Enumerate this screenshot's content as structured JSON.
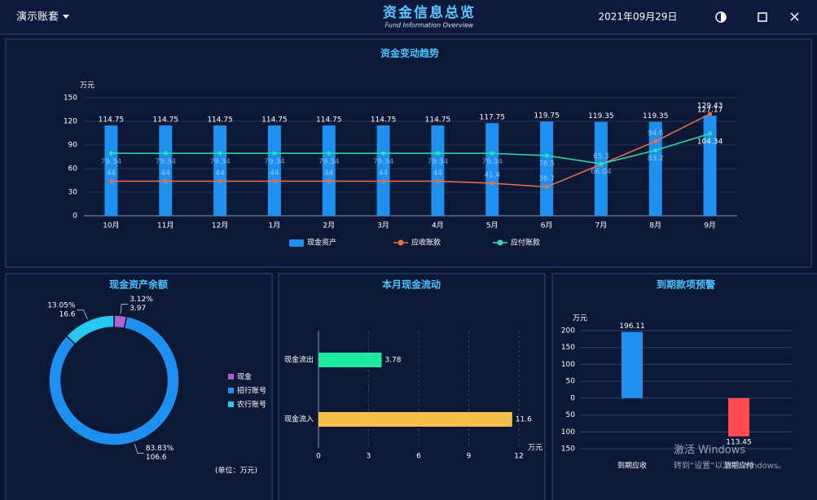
{
  "header": {
    "account": "演示账套",
    "title": "资金信息总览",
    "subtitle": "Fund Information Overview",
    "date": "2021年09月29日"
  },
  "chart_data": [
    {
      "type": "combo",
      "title": "资金变动趋势",
      "ylabel": "万元",
      "categories": [
        "10月",
        "11月",
        "12月",
        "1月",
        "2月",
        "3月",
        "4月",
        "5月",
        "6月",
        "7月",
        "8月",
        "9月"
      ],
      "ylim": [
        0,
        150
      ],
      "yticks": [
        0,
        30,
        60,
        90,
        120,
        150
      ],
      "grid": true,
      "series": [
        {
          "name": "现金资产",
          "mark": "bar",
          "color": "#1e90f0",
          "values": [
            114.75,
            114.75,
            114.75,
            114.75,
            114.75,
            114.75,
            114.75,
            117.75,
            119.75,
            119.35,
            119.35,
            127.17
          ]
        },
        {
          "name": "应收账款",
          "mark": "line",
          "color": "#f0704a",
          "values": [
            44,
            44,
            44,
            44,
            44,
            44,
            44,
            41.4,
            36.7,
            65.3,
            94.6,
            129.43
          ]
        },
        {
          "name": "应付账款",
          "mark": "line",
          "color": "#2de0b0",
          "values": [
            79.34,
            79.34,
            79.34,
            79.34,
            79.34,
            79.34,
            79.34,
            79.34,
            76.5,
            66.04,
            83.2,
            104.34
          ]
        }
      ]
    },
    {
      "type": "donut",
      "title": "现金资产余额",
      "note": "(单位：万元)",
      "categories": [
        "现金",
        "招行账号",
        "农行账号"
      ],
      "values": [
        3.97,
        106.6,
        16.6
      ],
      "percents": [
        {
          "value": 3.12,
          "label": "3.12%"
        },
        {
          "value": 83.83,
          "label": "83.83%"
        },
        {
          "value": 13.05,
          "label": "13.05%"
        }
      ],
      "colors": [
        "#b05fd0",
        "#1e90f0",
        "#27c9f0"
      ]
    },
    {
      "type": "hbar",
      "title": "本月现金流动",
      "xlabel": "万元",
      "categories": [
        "现金流出",
        "现金流入"
      ],
      "values": [
        3.78,
        11.6
      ],
      "colors": [
        "#1de9a0",
        "#f5c04a"
      ],
      "xlim": [
        0,
        12
      ],
      "xticks": [
        0,
        3,
        6,
        9,
        12
      ],
      "grid": true
    },
    {
      "type": "bar",
      "title": "到期款项预警",
      "ylabel": "万元",
      "categories": [
        "到期应收",
        "到期应付"
      ],
      "values": [
        196.11,
        -113.45
      ],
      "value_labels": [
        "196.11",
        "113.45"
      ],
      "colors": [
        "#1e90f0",
        "#ff4d4f"
      ],
      "ylim": [
        -150,
        200
      ],
      "yticks": [
        200,
        150,
        100,
        50,
        0,
        {
          "value": -50,
          "label": "50"
        },
        {
          "value": -100,
          "label": "100"
        },
        {
          "value": -150,
          "label": "150"
        }
      ],
      "grid": true
    }
  ],
  "watermark": {
    "line1": "激活 Windows",
    "line2": "转到“设置”以激活 Windows。"
  }
}
